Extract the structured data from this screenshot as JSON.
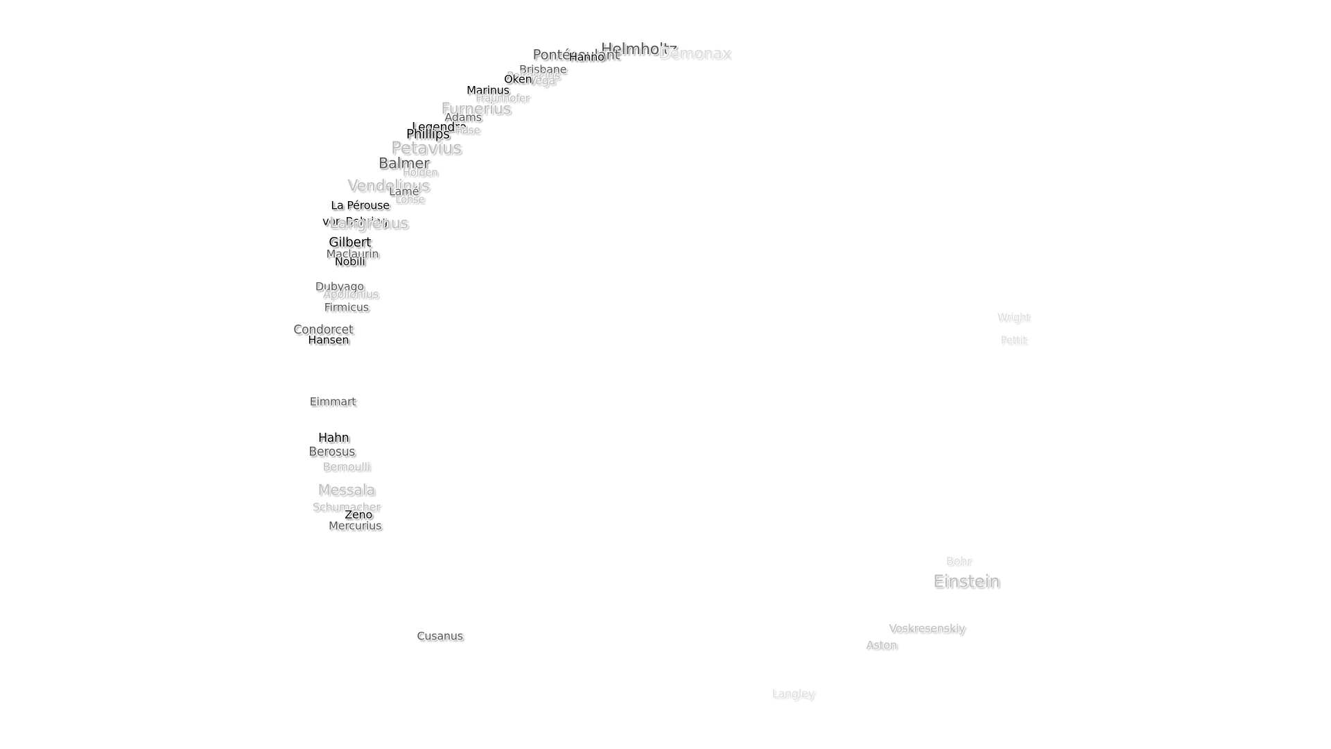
{
  "labels": [
    "Helmholtz",
    "Pontécoulant",
    "Hanno",
    "Demonax",
    "Brisbane",
    "Peirescius",
    "Vega",
    "Oken",
    "Marinus",
    "Fraunhofer",
    "Furnerius",
    "Adams",
    "Legendre",
    "Phillips",
    "Hase",
    "Petavius",
    "Balmer",
    "Holden",
    "Vendelinus",
    "Lamé",
    "Lohse",
    "La Pérouse",
    "von Behring",
    "Langrenus",
    "Gilbert",
    "Maclaurin",
    "Nobili",
    "Dubyago",
    "Apollonius",
    "Firmicus",
    "Condorcet",
    "Hansen",
    "Eimmart",
    "Hahn",
    "Berosus",
    "Bernoulli",
    "Messala",
    "Schumacher",
    "Zeno",
    "Mercurius",
    "Cusanus",
    "Wright",
    "Pettit",
    "Bohr",
    "Einstein",
    "Voskresenskiy",
    "Aston",
    "Langley"
  ]
}
